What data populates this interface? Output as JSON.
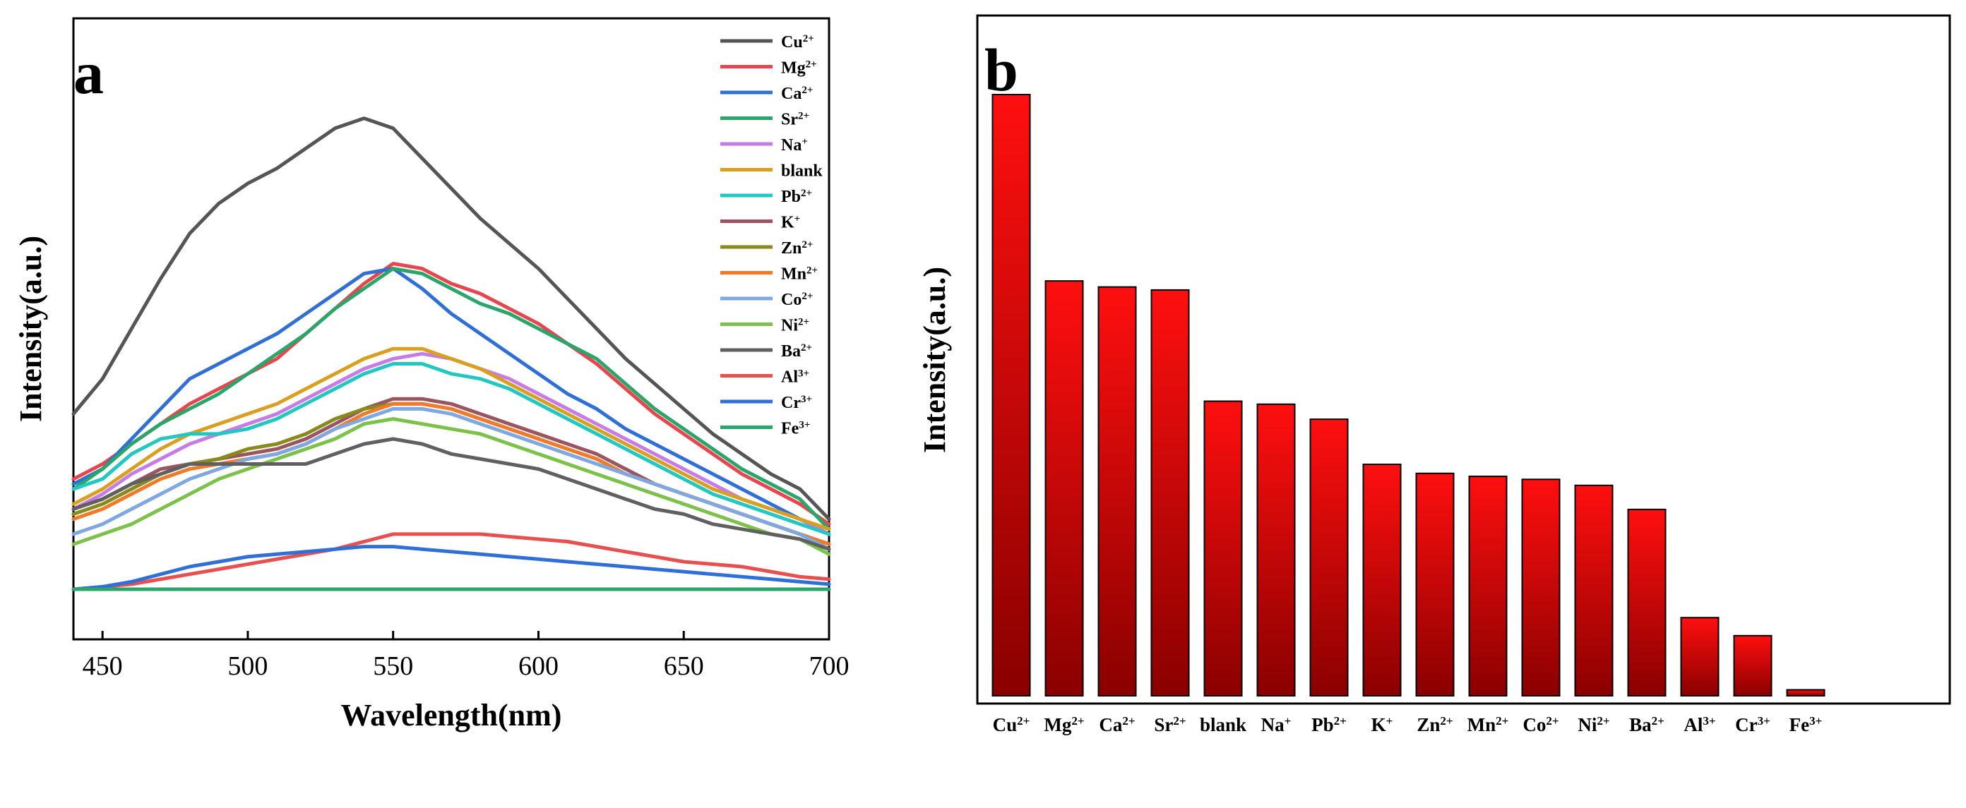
{
  "chart_data": [
    {
      "type": "line",
      "panel_label": "a",
      "xlabel": "Wavelength(nm)",
      "ylabel": "Intensity(a.u.)",
      "xlim": [
        440,
        700
      ],
      "ylim": [
        0,
        100
      ],
      "x_ticks": [
        450,
        500,
        550,
        600,
        650,
        700
      ],
      "x_tick_labels": [
        "450",
        "500",
        "550",
        "600",
        "650",
        "700"
      ],
      "y_ticks_shown": false,
      "legend_position": "top-right",
      "x": [
        440,
        450,
        460,
        470,
        480,
        490,
        500,
        510,
        520,
        530,
        540,
        550,
        560,
        570,
        580,
        590,
        600,
        610,
        620,
        630,
        640,
        650,
        660,
        670,
        680,
        690,
        700
      ],
      "series": [
        {
          "name": "Cu",
          "charge": "2+",
          "color": "#555555",
          "values": [
            35,
            42,
            52,
            62,
            71,
            77,
            81,
            84,
            88,
            92,
            94,
            92,
            86,
            80,
            74,
            69,
            64,
            58,
            52,
            46,
            41,
            36,
            31,
            27,
            23,
            20,
            14
          ]
        },
        {
          "name": "Mg",
          "charge": "2+",
          "color": "#e8464e",
          "values": [
            22,
            25,
            29,
            33,
            37,
            40,
            43,
            46,
            51,
            56,
            61,
            65,
            64,
            61,
            59,
            56,
            53,
            49,
            45,
            40,
            35,
            31,
            27,
            23,
            20,
            17,
            13
          ]
        },
        {
          "name": "Ca",
          "charge": "2+",
          "color": "#2f6fd6",
          "values": [
            21,
            24,
            30,
            36,
            42,
            45,
            48,
            51,
            55,
            59,
            63,
            64,
            60,
            55,
            51,
            47,
            43,
            39,
            36,
            32,
            29,
            26,
            23,
            20,
            17,
            14,
            11
          ]
        },
        {
          "name": "Sr",
          "charge": "2+",
          "color": "#2aa66a",
          "values": [
            20,
            24,
            29,
            33,
            36,
            39,
            43,
            47,
            51,
            56,
            60,
            64,
            63,
            60,
            57,
            55,
            52,
            49,
            46,
            41,
            36,
            32,
            28,
            24,
            21,
            18,
            12
          ]
        },
        {
          "name": "Na",
          "charge": "+",
          "color": "#c77be6",
          "values": [
            16,
            19,
            23,
            26,
            29,
            31,
            33,
            35,
            38,
            41,
            44,
            46,
            47,
            46,
            44,
            42,
            39,
            36,
            33,
            30,
            27,
            24,
            21,
            18,
            16,
            14,
            11
          ]
        },
        {
          "name": "blank",
          "charge": "",
          "color": "#d9a020",
          "values": [
            17,
            20,
            24,
            28,
            31,
            33,
            35,
            37,
            40,
            43,
            46,
            48,
            48,
            46,
            44,
            41,
            38,
            35,
            32,
            29,
            26,
            23,
            20,
            18,
            16,
            14,
            12
          ]
        },
        {
          "name": "Pb",
          "charge": "2+",
          "color": "#22c7c1",
          "values": [
            20,
            22,
            27,
            30,
            31,
            31,
            32,
            34,
            37,
            40,
            43,
            45,
            45,
            43,
            42,
            40,
            37,
            34,
            31,
            28,
            25,
            22,
            19,
            17,
            15,
            13,
            11
          ]
        },
        {
          "name": "K",
          "charge": "+",
          "color": "#9a5560",
          "values": [
            16,
            18,
            21,
            24,
            25,
            26,
            27,
            28,
            30,
            33,
            36,
            38,
            38,
            37,
            35,
            33,
            31,
            29,
            27,
            24,
            21,
            19,
            17,
            15,
            13,
            11,
            9
          ]
        },
        {
          "name": "Zn",
          "charge": "2+",
          "color": "#8a8a1c",
          "values": [
            15,
            17,
            20,
            23,
            25,
            26,
            28,
            29,
            31,
            34,
            36,
            37,
            37,
            36,
            34,
            32,
            30,
            28,
            26,
            23,
            21,
            19,
            17,
            15,
            13,
            11,
            9
          ]
        },
        {
          "name": "Mn",
          "charge": "2+",
          "color": "#f07a2a",
          "values": [
            14,
            16,
            19,
            22,
            24,
            25,
            26,
            27,
            29,
            32,
            35,
            37,
            37,
            36,
            34,
            32,
            30,
            28,
            26,
            23,
            21,
            19,
            17,
            15,
            13,
            11,
            9
          ]
        },
        {
          "name": "Co",
          "charge": "2+",
          "color": "#7fa7e0",
          "values": [
            11,
            13,
            16,
            19,
            22,
            24,
            26,
            27,
            29,
            32,
            34,
            36,
            36,
            35,
            33,
            31,
            29,
            27,
            25,
            23,
            21,
            19,
            17,
            15,
            13,
            11,
            8
          ]
        },
        {
          "name": "Ni",
          "charge": "2+",
          "color": "#7cc24a",
          "values": [
            9,
            11,
            13,
            16,
            19,
            22,
            24,
            26,
            28,
            30,
            33,
            34,
            33,
            32,
            31,
            29,
            27,
            25,
            23,
            21,
            19,
            17,
            15,
            13,
            11,
            10,
            7
          ]
        },
        {
          "name": "Ba",
          "charge": "2+",
          "color": "#606060",
          "values": [
            16,
            18,
            21,
            23,
            25,
            25,
            25,
            25,
            25,
            27,
            29,
            30,
            29,
            27,
            26,
            25,
            24,
            22,
            20,
            18,
            16,
            15,
            13,
            12,
            11,
            10,
            8
          ]
        },
        {
          "name": "Al",
          "charge": "3+",
          "color": "#e85050",
          "values": [
            0,
            0.5,
            1,
            2,
            3,
            4,
            5,
            6,
            7,
            8,
            9.5,
            11,
            11,
            11,
            11,
            10.5,
            10,
            9.5,
            8.5,
            7.5,
            6.5,
            5.5,
            5,
            4.5,
            3.5,
            2.5,
            2
          ]
        },
        {
          "name": "Cr",
          "charge": "3+",
          "color": "#2f6fd6",
          "values": [
            0,
            0.5,
            1.5,
            3,
            4.5,
            5.5,
            6.5,
            7,
            7.5,
            8,
            8.5,
            8.5,
            8,
            7.5,
            7,
            6.5,
            6,
            5.5,
            5,
            4.5,
            4,
            3.5,
            3,
            2.5,
            2,
            1.5,
            1
          ]
        },
        {
          "name": "Fe",
          "charge": "3+",
          "color": "#2aa66a",
          "values": [
            0,
            0,
            0,
            0,
            0,
            0,
            0,
            0,
            0,
            0,
            0,
            0,
            0,
            0,
            0,
            0,
            0,
            0,
            0,
            0,
            0,
            0,
            0,
            0,
            0,
            0,
            0
          ]
        }
      ]
    },
    {
      "type": "bar",
      "panel_label": "b",
      "xlabel": "",
      "ylabel": "Intensity(a.u.)",
      "ylim": [
        0,
        100
      ],
      "y_ticks_shown": false,
      "categories": [
        {
          "name": "Cu",
          "charge": "2+"
        },
        {
          "name": "Mg",
          "charge": "2+"
        },
        {
          "name": "Ca",
          "charge": "2+"
        },
        {
          "name": "Sr",
          "charge": "2+"
        },
        {
          "name": "blank",
          "charge": ""
        },
        {
          "name": "Na",
          "charge": "+"
        },
        {
          "name": "Pb",
          "charge": "2+"
        },
        {
          "name": "K",
          "charge": "+"
        },
        {
          "name": "Zn",
          "charge": "2+"
        },
        {
          "name": "Mn",
          "charge": "2+"
        },
        {
          "name": "Co",
          "charge": "2+"
        },
        {
          "name": "Ni",
          "charge": "2+"
        },
        {
          "name": "Ba",
          "charge": "2+"
        },
        {
          "name": "Al",
          "charge": "3+"
        },
        {
          "name": "Cr",
          "charge": "3+"
        },
        {
          "name": "Fe",
          "charge": "3+"
        }
      ],
      "values": [
        100,
        69,
        68,
        67.5,
        49,
        48.5,
        46,
        38.5,
        37,
        36.5,
        36,
        35,
        31,
        13,
        10,
        1
      ],
      "bar_color_top": "#ff0f0f",
      "bar_color_bottom": "#8a0000"
    }
  ]
}
